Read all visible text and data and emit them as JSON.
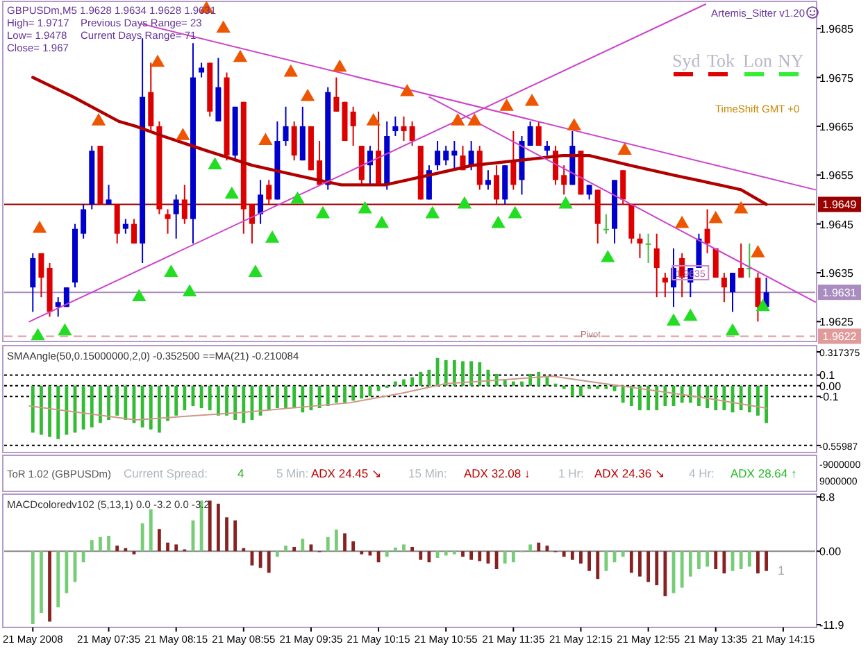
{
  "chart_data": [
    {
      "type": "candlestick",
      "title": "GBPUSDm,M5  1.9628 1.9634 1.9628 1.9631",
      "tick_labels": "y",
      "xlim": [
        "2008-05-21T06:33",
        "2008-05-21T14:34"
      ],
      "ylim": [
        1.96215,
        1.969
      ],
      "yticks": [
        1.9625,
        1.9635,
        1.9645,
        1.9655,
        1.9665,
        1.9675,
        1.9685
      ],
      "annotations": [
        "High= 1.9717",
        "Low= 1.9478",
        "Close= 1.967",
        "Previous Days Range= 23",
        "Current Days Range= 71",
        "Artemis_Sitter v1.20",
        "Syd",
        "Tok",
        "Lon",
        "NY",
        "TimeShift GMT +0",
        "Pivot",
        {
          "text": "1.9635",
          "x": "2008-05-21T13:20",
          "y": 1.9635
        }
      ],
      "ref_lines": [
        {
          "axis": "y",
          "value": 1.9649,
          "label": "1.9649",
          "color": "#990000"
        },
        {
          "axis": "y",
          "value": 1.9631,
          "label": "1.9631",
          "color": "#a98cc0"
        },
        {
          "axis": "y",
          "value": 1.9622,
          "label": "1.9622",
          "color": "#e09a9a",
          "line_style": "dashed"
        }
      ],
      "x": [
        "2008-05-21T06:50",
        "2008-05-21T06:55",
        "2008-05-21T07:00",
        "2008-05-21T07:05",
        "2008-05-21T07:10",
        "2008-05-21T07:15",
        "2008-05-21T07:20",
        "2008-05-21T07:25",
        "2008-05-21T07:30",
        "2008-05-21T07:35",
        "2008-05-21T07:40",
        "2008-05-21T07:45",
        "2008-05-21T07:50",
        "2008-05-21T07:55",
        "2008-05-21T08:00",
        "2008-05-21T08:05",
        "2008-05-21T08:10",
        "2008-05-21T08:15",
        "2008-05-21T08:20",
        "2008-05-21T08:25",
        "2008-05-21T08:30",
        "2008-05-21T08:35",
        "2008-05-21T08:40",
        "2008-05-21T08:45",
        "2008-05-21T08:50",
        "2008-05-21T08:55",
        "2008-05-21T09:00",
        "2008-05-21T09:05",
        "2008-05-21T09:10",
        "2008-05-21T09:15",
        "2008-05-21T09:20",
        "2008-05-21T09:25",
        "2008-05-21T09:30",
        "2008-05-21T09:35",
        "2008-05-21T09:40",
        "2008-05-21T09:45",
        "2008-05-21T09:50",
        "2008-05-21T09:55",
        "2008-05-21T10:00",
        "2008-05-21T10:05",
        "2008-05-21T10:10",
        "2008-05-21T10:15",
        "2008-05-21T10:20",
        "2008-05-21T10:25",
        "2008-05-21T10:30",
        "2008-05-21T10:35",
        "2008-05-21T10:40",
        "2008-05-21T10:45",
        "2008-05-21T10:50",
        "2008-05-21T10:55",
        "2008-05-21T11:00",
        "2008-05-21T11:05",
        "2008-05-21T11:10",
        "2008-05-21T11:15",
        "2008-05-21T11:20",
        "2008-05-21T11:25",
        "2008-05-21T11:30",
        "2008-05-21T11:35",
        "2008-05-21T11:40",
        "2008-05-21T11:45",
        "2008-05-21T11:50",
        "2008-05-21T11:55",
        "2008-05-21T12:00",
        "2008-05-21T12:05",
        "2008-05-21T12:10",
        "2008-05-21T12:15",
        "2008-05-21T12:20",
        "2008-05-21T12:25",
        "2008-05-21T12:30",
        "2008-05-21T12:35",
        "2008-05-21T12:40",
        "2008-05-21T12:45",
        "2008-05-21T12:50",
        "2008-05-21T12:55",
        "2008-05-21T13:00",
        "2008-05-21T13:05",
        "2008-05-21T13:10",
        "2008-05-21T13:15",
        "2008-05-21T13:20",
        "2008-05-21T13:25",
        "2008-05-21T13:30",
        "2008-05-21T13:35",
        "2008-05-21T13:40",
        "2008-05-21T13:45",
        "2008-05-21T13:50",
        "2008-05-21T13:55",
        "2008-05-21T14:00",
        "2008-05-21T14:05"
      ],
      "ohlc": [
        [
          1.9632,
          1.9639,
          1.9627,
          1.9638
        ],
        [
          1.9639,
          1.9639,
          1.963,
          1.9634
        ],
        [
          1.9636,
          1.9637,
          1.9626,
          1.9627
        ],
        [
          1.9628,
          1.963,
          1.9626,
          1.9629
        ],
        [
          1.9628,
          1.9632,
          1.9628,
          1.9632
        ],
        [
          1.9633,
          1.9645,
          1.9632,
          1.9644
        ],
        [
          1.9643,
          1.9649,
          1.9642,
          1.9648
        ],
        [
          1.9649,
          1.9661,
          1.9648,
          1.966
        ],
        [
          1.9661,
          1.9661,
          1.9649,
          1.9649
        ],
        [
          1.9649,
          1.9653,
          1.9649,
          1.965
        ],
        [
          1.9649,
          1.9649,
          1.9641,
          1.9643
        ],
        [
          1.9644,
          1.9646,
          1.9643,
          1.9645
        ],
        [
          1.9645,
          1.9646,
          1.9641,
          1.9641
        ],
        [
          1.9641,
          1.9683,
          1.9637,
          1.9671
        ],
        [
          1.9672,
          1.9678,
          1.9664,
          1.9665
        ],
        [
          1.9665,
          1.9666,
          1.9647,
          1.9648
        ],
        [
          1.9647,
          1.9648,
          1.9643,
          1.9646
        ],
        [
          1.9647,
          1.9651,
          1.9642,
          1.965
        ],
        [
          1.965,
          1.9653,
          1.9645,
          1.9646
        ],
        [
          1.9646,
          1.9682,
          1.9641,
          1.9675
        ],
        [
          1.9676,
          1.9678,
          1.9675,
          1.9677
        ],
        [
          1.9678,
          1.9678,
          1.9667,
          1.9668
        ],
        [
          1.9666,
          1.9679,
          1.9666,
          1.9673
        ],
        [
          1.9675,
          1.9676,
          1.9658,
          1.9659
        ],
        [
          1.9659,
          1.9669,
          1.9658,
          1.9669
        ],
        [
          1.967,
          1.967,
          1.9643,
          1.9648
        ],
        [
          1.9649,
          1.9649,
          1.9641,
          1.9645
        ],
        [
          1.9647,
          1.9654,
          1.9645,
          1.9651
        ],
        [
          1.9653,
          1.9654,
          1.9649,
          1.965
        ],
        [
          1.965,
          1.9666,
          1.965,
          1.9662
        ],
        [
          1.9662,
          1.9669,
          1.9661,
          1.9665
        ],
        [
          1.9665,
          1.9666,
          1.9658,
          1.9659
        ],
        [
          1.9658,
          1.9669,
          1.9658,
          1.9665
        ],
        [
          1.9665,
          1.9665,
          1.9656,
          1.9656
        ],
        [
          1.9658,
          1.9662,
          1.9653,
          1.9653
        ],
        [
          1.9653,
          1.9673,
          1.9652,
          1.9672
        ],
        [
          1.9671,
          1.9675,
          1.9668,
          1.9668
        ],
        [
          1.967,
          1.967,
          1.9662,
          1.9662
        ],
        [
          1.9668,
          1.9669,
          1.9661,
          1.9665
        ],
        [
          1.9661,
          1.9661,
          1.9653,
          1.9654
        ],
        [
          1.9657,
          1.9661,
          1.9653,
          1.966
        ],
        [
          1.966,
          1.9668,
          1.9653,
          1.9653
        ],
        [
          1.9653,
          1.9666,
          1.9652,
          1.9663
        ],
        [
          1.9664,
          1.9667,
          1.9663,
          1.9665
        ],
        [
          1.9665,
          1.9667,
          1.9662,
          1.9664
        ],
        [
          1.9665,
          1.9666,
          1.9661,
          1.9662
        ],
        [
          1.9661,
          1.9661,
          1.965,
          1.965
        ],
        [
          1.965,
          1.9657,
          1.965,
          1.9656
        ],
        [
          1.9657,
          1.9662,
          1.9656,
          1.966
        ],
        [
          1.9658,
          1.9661,
          1.9657,
          1.966
        ],
        [
          1.9659,
          1.9662,
          1.9656,
          1.966
        ],
        [
          1.9659,
          1.9661,
          1.9656,
          1.9656
        ],
        [
          1.9657,
          1.9662,
          1.9656,
          1.966
        ],
        [
          1.966,
          1.9661,
          1.9652,
          1.9653
        ],
        [
          1.9653,
          1.9656,
          1.9652,
          1.9654
        ],
        [
          1.9655,
          1.9657,
          1.9649,
          1.965
        ],
        [
          1.965,
          1.9657,
          1.9649,
          1.9657
        ],
        [
          1.9658,
          1.9664,
          1.9652,
          1.9653
        ],
        [
          1.9654,
          1.9663,
          1.9651,
          1.9662
        ],
        [
          1.9661,
          1.9666,
          1.9661,
          1.9665
        ],
        [
          1.9665,
          1.9666,
          1.9661,
          1.9661
        ],
        [
          1.966,
          1.9662,
          1.9659,
          1.9661
        ],
        [
          1.966,
          1.9661,
          1.9653,
          1.9654
        ],
        [
          1.9655,
          1.9657,
          1.9651,
          1.9653
        ],
        [
          1.9653,
          1.9664,
          1.9653,
          1.9661
        ],
        [
          1.966,
          1.966,
          1.9651,
          1.9651
        ],
        [
          1.9651,
          1.9653,
          1.965,
          1.9653
        ],
        [
          1.9652,
          1.9652,
          1.9641,
          1.9645
        ],
        [
          1.9644,
          1.9647,
          1.9643,
          1.9644
        ],
        [
          1.9644,
          1.9654,
          1.9641,
          1.9654
        ],
        [
          1.9656,
          1.9656,
          1.9649,
          1.965
        ],
        [
          1.9649,
          1.9649,
          1.9641,
          1.9642
        ],
        [
          1.9642,
          1.9643,
          1.9638,
          1.9641
        ],
        [
          1.9641,
          1.9643,
          1.9637,
          1.9641
        ],
        [
          1.964,
          1.9643,
          1.963,
          1.9636
        ],
        [
          1.9634,
          1.9635,
          1.963,
          1.9633
        ],
        [
          1.9632,
          1.964,
          1.9628,
          1.9636
        ],
        [
          1.9638,
          1.9639,
          1.963,
          1.9634
        ],
        [
          1.9633,
          1.9636,
          1.963,
          1.9636
        ],
        [
          1.9636,
          1.9643,
          1.9636,
          1.9642
        ],
        [
          1.9644,
          1.9648,
          1.9639,
          1.9641
        ],
        [
          1.964,
          1.964,
          1.9634,
          1.9634
        ],
        [
          1.9634,
          1.9635,
          1.9629,
          1.9632
        ],
        [
          1.9631,
          1.9635,
          1.9627,
          1.9635
        ],
        [
          1.9636,
          1.9641,
          1.9634,
          1.9634
        ],
        [
          1.9636,
          1.9641,
          1.9634,
          1.9636
        ],
        [
          1.9634,
          1.9635,
          1.9625,
          1.9628
        ],
        [
          1.9628,
          1.9634,
          1.9628,
          1.9631
        ]
      ],
      "colors": [
        "#0000cc",
        "#dd0000",
        "#dd0000",
        "#0000cc",
        "#0000cc",
        "#0000cc",
        "#0000cc",
        "#0000cc",
        "#dd0000",
        "#0000cc",
        "#dd0000",
        "#0000cc",
        "#dd0000",
        "#0000cc",
        "#dd0000",
        "#dd0000",
        "#dd0000",
        "#0000cc",
        "#dd0000",
        "#0000cc",
        "#0000cc",
        "#dd0000",
        "#0000cc",
        "#dd0000",
        "#0000cc",
        "#dd0000",
        "#dd0000",
        "#0000cc",
        "#dd0000",
        "#0000cc",
        "#0000cc",
        "#dd0000",
        "#0000cc",
        "#dd0000",
        "#dd0000",
        "#0000cc",
        "#dd0000",
        "#dd0000",
        "#dd0000",
        "#dd0000",
        "#0000cc",
        "#dd0000",
        "#0000cc",
        "#0000cc",
        "#dd0000",
        "#dd0000",
        "#dd0000",
        "#0000cc",
        "#0000cc",
        "#0000cc",
        "#0000cc",
        "#dd0000",
        "#0000cc",
        "#dd0000",
        "#0000cc",
        "#dd0000",
        "#0000cc",
        "#dd0000",
        "#0000cc",
        "#0000cc",
        "#dd0000",
        "#0000cc",
        "#dd0000",
        "#dd0000",
        "#0000cc",
        "#dd0000",
        "#0000cc",
        "#dd0000",
        "#44bb44",
        "#0000cc",
        "#dd0000",
        "#dd0000",
        "#dd0000",
        "#44bb44",
        "#dd0000",
        "#dd0000",
        "#0000cc",
        "#dd0000",
        "#0000cc",
        "#0000cc",
        "#dd0000",
        "#dd0000",
        "#dd0000",
        "#0000cc",
        "#dd0000",
        "#44bb44",
        "#dd0000",
        "#0000cc"
      ],
      "series": [
        {
          "type": "line",
          "color": "#b00000",
          "x": [
            "2008-05-21T06:50",
            "2008-05-21T07:14",
            "2008-05-21T07:41",
            "2008-05-21T07:51",
            "2008-05-21T08:07",
            "2008-05-21T08:33",
            "2008-05-21T09:00",
            "2008-05-21T09:26",
            "2008-05-21T09:39",
            "2008-05-21T09:53",
            "2008-05-21T10:19",
            "2008-05-21T10:32",
            "2008-05-21T10:45",
            "2008-05-21T10:58",
            "2008-05-21T11:11",
            "2008-05-21T11:38",
            "2008-05-21T12:04",
            "2008-05-21T12:20",
            "2008-05-21T12:44",
            "2008-05-21T13:10",
            "2008-05-21T13:37",
            "2008-05-21T13:50",
            "2008-05-21T14:05"
          ],
          "values": [
            1.9675,
            1.9671,
            1.9666,
            1.9665,
            1.9663,
            1.966,
            1.9657,
            1.9655,
            1.9654,
            1.9653,
            1.9653,
            1.9654,
            1.9655,
            1.9656,
            1.9657,
            1.9658,
            1.9659,
            1.9659,
            1.9657,
            1.9655,
            1.9653,
            1.9652,
            1.9649
          ]
        },
        {
          "type": "line",
          "color": "#cc44cc",
          "x": [
            "2008-05-21T07:54",
            "2008-05-21T14:34"
          ],
          "values": [
            1.9686,
            1.9652
          ]
        },
        {
          "type": "line",
          "color": "#cc44cc",
          "x": [
            "2008-05-21T10:45",
            "2008-05-21T14:34"
          ],
          "values": [
            1.9671,
            1.9629
          ]
        },
        {
          "type": "line",
          "color": "#cc44cc",
          "x": [
            "2008-05-21T06:48",
            "2008-05-21T13:29"
          ],
          "values": [
            1.9625,
            1.969
          ]
        },
        {
          "type": "scatter",
          "marker": "triangle",
          "color": "#ee5500",
          "x": [
            "2008-05-21T06:54",
            "2008-05-21T07:29",
            "2008-05-21T08:04",
            "2008-05-21T08:19",
            "2008-05-21T08:33",
            "2008-05-21T08:43",
            "2008-05-21T08:53",
            "2008-05-21T09:08",
            "2008-05-21T09:23",
            "2008-05-21T09:33",
            "2008-05-21T09:52",
            "2008-05-21T10:12",
            "2008-05-21T10:32",
            "2008-05-21T11:02",
            "2008-05-21T11:12",
            "2008-05-21T11:31",
            "2008-05-21T11:46",
            "2008-05-21T12:11",
            "2008-05-21T12:41",
            "2008-05-21T13:15",
            "2008-05-21T13:35",
            "2008-05-21T13:50",
            "2008-05-21T14:00"
          ],
          "values": [
            1.9644,
            1.9666,
            1.9678,
            1.9663,
            1.9689,
            1.9685,
            1.9679,
            1.9662,
            1.9676,
            1.9671,
            1.9677,
            1.9666,
            1.9672,
            1.9666,
            1.9666,
            1.9669,
            1.967,
            1.9665,
            1.966,
            1.9645,
            1.9646,
            1.9648,
            1.9639
          ]
        },
        {
          "type": "scatter",
          "marker": "triangle",
          "color": "#22dd22",
          "x": [
            "2008-05-21T06:53",
            "2008-05-21T07:09",
            "2008-05-21T07:53",
            "2008-05-21T08:12",
            "2008-05-21T08:23",
            "2008-05-21T08:38",
            "2008-05-21T08:48",
            "2008-05-21T09:02",
            "2008-05-21T09:12",
            "2008-05-21T09:27",
            "2008-05-21T09:42",
            "2008-05-21T10:07",
            "2008-05-21T10:17",
            "2008-05-21T10:47",
            "2008-05-21T11:06",
            "2008-05-21T11:26",
            "2008-05-21T11:36",
            "2008-05-21T12:06",
            "2008-05-21T12:31",
            "2008-05-21T13:10",
            "2008-05-21T13:20",
            "2008-05-21T13:45",
            "2008-05-21T14:03"
          ],
          "values": [
            1.9622,
            1.9623,
            1.963,
            1.9635,
            1.9631,
            1.9657,
            1.9651,
            1.9635,
            1.9642,
            1.965,
            1.9647,
            1.9648,
            1.9645,
            1.9647,
            1.9649,
            1.9645,
            1.9647,
            1.9649,
            1.9638,
            1.9625,
            1.9626,
            1.9623,
            1.9628
          ]
        }
      ]
    },
    {
      "type": "bar",
      "title": "SMAAngle(50,0.15000000,2,0) -0.352500  ==MA(21) -0.210084",
      "tick_labels": "y",
      "xlim": [
        "2008-05-21T06:33",
        "2008-05-21T14:34"
      ],
      "ylim": [
        -0.6,
        0.35
      ],
      "yticks": [
        0.317375,
        0.1,
        {
          "value": 0,
          "label": "0.00"
        },
        -0.1,
        -0.55987
      ],
      "color": "#33bb33",
      "ref_lines": [
        {
          "axis": "y",
          "value": 0.1,
          "color": "#000000",
          "line_style": "dotted"
        },
        {
          "axis": "y",
          "value": 0,
          "color": "#000000",
          "line_style": "dotted"
        },
        {
          "axis": "y",
          "value": -0.1,
          "color": "#000000",
          "line_style": "dotted"
        },
        {
          "axis": "y",
          "value": -0.55987,
          "color": "#000000",
          "line_style": "dotted"
        }
      ],
      "x": [
        "2008-05-21T06:50",
        "2008-05-21T06:55",
        "2008-05-21T07:00",
        "2008-05-21T07:05",
        "2008-05-21T07:10",
        "2008-05-21T07:15",
        "2008-05-21T07:20",
        "2008-05-21T07:25",
        "2008-05-21T07:30",
        "2008-05-21T07:35",
        "2008-05-21T07:40",
        "2008-05-21T07:45",
        "2008-05-21T07:50",
        "2008-05-21T07:55",
        "2008-05-21T08:00",
        "2008-05-21T08:05",
        "2008-05-21T08:10",
        "2008-05-21T08:15",
        "2008-05-21T08:20",
        "2008-05-21T08:25",
        "2008-05-21T08:30",
        "2008-05-21T08:35",
        "2008-05-21T08:40",
        "2008-05-21T08:45",
        "2008-05-21T08:50",
        "2008-05-21T08:55",
        "2008-05-21T09:00",
        "2008-05-21T09:05",
        "2008-05-21T09:10",
        "2008-05-21T09:15",
        "2008-05-21T09:20",
        "2008-05-21T09:25",
        "2008-05-21T09:30",
        "2008-05-21T09:35",
        "2008-05-21T09:40",
        "2008-05-21T09:45",
        "2008-05-21T09:50",
        "2008-05-21T09:55",
        "2008-05-21T10:00",
        "2008-05-21T10:05",
        "2008-05-21T10:10",
        "2008-05-21T10:15",
        "2008-05-21T10:20",
        "2008-05-21T10:25",
        "2008-05-21T10:30",
        "2008-05-21T10:35",
        "2008-05-21T10:40",
        "2008-05-21T10:45",
        "2008-05-21T10:50",
        "2008-05-21T10:55",
        "2008-05-21T11:00",
        "2008-05-21T11:05",
        "2008-05-21T11:10",
        "2008-05-21T11:15",
        "2008-05-21T11:20",
        "2008-05-21T11:25",
        "2008-05-21T11:30",
        "2008-05-21T11:35",
        "2008-05-21T11:40",
        "2008-05-21T11:45",
        "2008-05-21T11:50",
        "2008-05-21T11:55",
        "2008-05-21T12:00",
        "2008-05-21T12:05",
        "2008-05-21T12:10",
        "2008-05-21T12:15",
        "2008-05-21T12:20",
        "2008-05-21T12:25",
        "2008-05-21T12:30",
        "2008-05-21T12:35",
        "2008-05-21T12:40",
        "2008-05-21T12:45",
        "2008-05-21T12:50",
        "2008-05-21T12:55",
        "2008-05-21T13:00",
        "2008-05-21T13:05",
        "2008-05-21T13:10",
        "2008-05-21T13:15",
        "2008-05-21T13:20",
        "2008-05-21T13:25",
        "2008-05-21T13:30",
        "2008-05-21T13:35",
        "2008-05-21T13:40",
        "2008-05-21T13:45",
        "2008-05-21T13:50",
        "2008-05-21T13:55",
        "2008-05-21T14:00",
        "2008-05-21T14:05"
      ],
      "values": [
        -0.44,
        -0.46,
        -0.48,
        -0.5,
        -0.46,
        -0.44,
        -0.41,
        -0.39,
        -0.35,
        -0.32,
        -0.28,
        -0.32,
        -0.35,
        -0.39,
        -0.41,
        -0.44,
        -0.33,
        -0.28,
        -0.23,
        -0.19,
        -0.21,
        -0.23,
        -0.28,
        -0.28,
        -0.32,
        -0.35,
        -0.32,
        -0.28,
        -0.23,
        -0.21,
        -0.21,
        -0.21,
        -0.25,
        -0.23,
        -0.21,
        -0.19,
        -0.16,
        -0.16,
        -0.14,
        -0.12,
        -0.1,
        -0.05,
        -0.02,
        0.04,
        0.06,
        0.08,
        0.13,
        0.15,
        0.26,
        0.24,
        0.24,
        0.23,
        0.23,
        0.22,
        0.15,
        0.11,
        0.06,
        0.04,
        0.04,
        0.11,
        0.13,
        0.08,
        0.02,
        -0.03,
        -0.1,
        -0.1,
        -0.03,
        -0.03,
        -0.03,
        -0.05,
        -0.16,
        -0.19,
        -0.23,
        -0.23,
        -0.23,
        -0.19,
        -0.19,
        -0.16,
        -0.16,
        -0.19,
        -0.21,
        -0.23,
        -0.23,
        -0.25,
        -0.23,
        -0.25,
        -0.28,
        -0.35
      ],
      "series": [
        {
          "type": "line",
          "color": "#cc9988",
          "x": [
            "2008-05-21T06:48",
            "2008-05-21T07:51",
            "2008-05-21T08:54",
            "2008-05-21T09:58",
            "2008-05-21T10:29",
            "2008-05-21T10:55",
            "2008-05-21T11:33",
            "2008-05-21T11:58",
            "2008-05-21T12:20",
            "2008-05-21T12:52",
            "2008-05-21T13:23",
            "2008-05-21T14:05"
          ],
          "values": [
            -0.19,
            -0.32,
            -0.25,
            -0.16,
            -0.07,
            0.02,
            0.06,
            0.09,
            0.04,
            -0.03,
            -0.1,
            -0.21
          ]
        }
      ]
    },
    {
      "type": "other",
      "title": "ToR 1.02 (GBPUSDm)",
      "annotations": [
        "Current Spread:",
        "4",
        "5 Min:",
        "ADX 24.45 ↘",
        "15 Min:",
        "ADX 32.08 ↓",
        "1 Hr:",
        "ADX 24.36 ↘",
        "4 Hr:",
        "ADX 28.64 ↑",
        "-9000000",
        "9000000"
      ]
    },
    {
      "type": "bar",
      "title": "MACDcoloredv102 (5,13,1) 0.0 -3.2 0.0 -3.2",
      "annotations": [
        "1"
      ],
      "xlim": [
        "2008-05-21T06:33",
        "2008-05-21T14:34"
      ],
      "ylim": [
        -11.9,
        8.8
      ],
      "yticks": [
        8.8,
        {
          "value": 0,
          "label": "0.00"
        },
        -11.9
      ],
      "xticks": [
        {
          "value": "2008-05-21T06:50",
          "label": "21 May 2008"
        },
        {
          "value": "2008-05-21T07:35",
          "label": "21 May 07:35"
        },
        {
          "value": "2008-05-21T08:15",
          "label": "21 May 08:15"
        },
        {
          "value": "2008-05-21T08:55",
          "label": "21 May 08:55"
        },
        {
          "value": "2008-05-21T09:35",
          "label": "21 May 09:35"
        },
        {
          "value": "2008-05-21T10:15",
          "label": "21 May 10:15"
        },
        {
          "value": "2008-05-21T10:55",
          "label": "21 May 10:55"
        },
        {
          "value": "2008-05-21T11:35",
          "label": "21 May 11:35"
        },
        {
          "value": "2008-05-21T12:15",
          "label": "21 May 12:15"
        },
        {
          "value": "2008-05-21T12:55",
          "label": "21 May 12:55"
        },
        {
          "value": "2008-05-21T13:35",
          "label": "21 May 13:35"
        },
        {
          "value": "2008-05-21T14:15",
          "label": "21 May 14:15"
        }
      ],
      "ref_lines": [
        {
          "axis": "y",
          "value": 0,
          "color": "#888888"
        }
      ],
      "x": [
        "2008-05-21T06:50",
        "2008-05-21T06:55",
        "2008-05-21T07:00",
        "2008-05-21T07:05",
        "2008-05-21T07:10",
        "2008-05-21T07:15",
        "2008-05-21T07:20",
        "2008-05-21T07:25",
        "2008-05-21T07:30",
        "2008-05-21T07:35",
        "2008-05-21T07:40",
        "2008-05-21T07:45",
        "2008-05-21T07:50",
        "2008-05-21T07:55",
        "2008-05-21T08:00",
        "2008-05-21T08:05",
        "2008-05-21T08:10",
        "2008-05-21T08:15",
        "2008-05-21T08:20",
        "2008-05-21T08:25",
        "2008-05-21T08:30",
        "2008-05-21T08:35",
        "2008-05-21T08:40",
        "2008-05-21T08:45",
        "2008-05-21T08:50",
        "2008-05-21T08:55",
        "2008-05-21T09:00",
        "2008-05-21T09:05",
        "2008-05-21T09:10",
        "2008-05-21T09:15",
        "2008-05-21T09:20",
        "2008-05-21T09:25",
        "2008-05-21T09:30",
        "2008-05-21T09:35",
        "2008-05-21T09:40",
        "2008-05-21T09:45",
        "2008-05-21T09:50",
        "2008-05-21T09:55",
        "2008-05-21T10:00",
        "2008-05-21T10:05",
        "2008-05-21T10:10",
        "2008-05-21T10:15",
        "2008-05-21T10:20",
        "2008-05-21T10:25",
        "2008-05-21T10:30",
        "2008-05-21T10:35",
        "2008-05-21T10:40",
        "2008-05-21T10:45",
        "2008-05-21T10:50",
        "2008-05-21T10:55",
        "2008-05-21T11:00",
        "2008-05-21T11:05",
        "2008-05-21T11:10",
        "2008-05-21T11:15",
        "2008-05-21T11:20",
        "2008-05-21T11:25",
        "2008-05-21T11:30",
        "2008-05-21T11:35",
        "2008-05-21T11:40",
        "2008-05-21T11:45",
        "2008-05-21T11:50",
        "2008-05-21T11:55",
        "2008-05-21T12:00",
        "2008-05-21T12:05",
        "2008-05-21T12:10",
        "2008-05-21T12:15",
        "2008-05-21T12:20",
        "2008-05-21T12:25",
        "2008-05-21T12:30",
        "2008-05-21T12:35",
        "2008-05-21T12:40",
        "2008-05-21T12:45",
        "2008-05-21T12:50",
        "2008-05-21T12:55",
        "2008-05-21T13:00",
        "2008-05-21T13:05",
        "2008-05-21T13:10",
        "2008-05-21T13:15",
        "2008-05-21T13:20",
        "2008-05-21T13:25",
        "2008-05-21T13:30",
        "2008-05-21T13:35",
        "2008-05-21T13:40",
        "2008-05-21T13:45",
        "2008-05-21T13:50",
        "2008-05-21T13:55",
        "2008-05-21T14:00",
        "2008-05-21T14:05"
      ],
      "values": [
        -11.8,
        -10,
        -11.4,
        -9.1,
        -6.8,
        -5,
        -1.8,
        1.8,
        2.3,
        2.5,
        0.9,
        0.5,
        -0.5,
        4.5,
        6.8,
        3.6,
        1.4,
        1.1,
        0.3,
        5,
        8.2,
        8.2,
        7.7,
        5.5,
        5,
        0.5,
        -2.3,
        -2.7,
        -3.5,
        -0.9,
        0.9,
        0.7,
        2,
        1.1,
        0,
        2.3,
        3.5,
        2.9,
        1.6,
        -0.5,
        -0.7,
        -1.8,
        -0.9,
        0.6,
        1.1,
        0.7,
        -1.4,
        -1.8,
        -1.1,
        -0.7,
        -0.5,
        -0.9,
        -1.4,
        -1.6,
        -2,
        -2.9,
        -2,
        -1.8,
        0,
        1.1,
        1.4,
        0.9,
        0,
        -0.9,
        -1.4,
        -2,
        -3.2,
        -4.5,
        -3.2,
        -1.8,
        -0.9,
        -3.5,
        -4.1,
        -5,
        -5.5,
        -7.3,
        -6.8,
        -5.9,
        -4.1,
        -2.9,
        -2.5,
        -2.9,
        -3.6,
        -3.2,
        -2.9,
        -2.5,
        -3.6,
        -3.2
      ],
      "colors": [
        "#77cc77",
        "#77cc77",
        "#882222",
        "#77cc77",
        "#77cc77",
        "#77cc77",
        "#77cc77",
        "#77cc77",
        "#77cc77",
        "#77cc77",
        "#882222",
        "#882222",
        "#882222",
        "#77cc77",
        "#77cc77",
        "#882222",
        "#882222",
        "#882222",
        "#882222",
        "#77cc77",
        "#77cc77",
        "#882222",
        "#882222",
        "#882222",
        "#882222",
        "#882222",
        "#882222",
        "#882222",
        "#882222",
        "#77cc77",
        "#77cc77",
        "#882222",
        "#77cc77",
        "#882222",
        "#882222",
        "#77cc77",
        "#77cc77",
        "#882222",
        "#882222",
        "#882222",
        "#882222",
        "#882222",
        "#77cc77",
        "#77cc77",
        "#77cc77",
        "#882222",
        "#882222",
        "#882222",
        "#77cc77",
        "#77cc77",
        "#77cc77",
        "#882222",
        "#882222",
        "#882222",
        "#882222",
        "#882222",
        "#77cc77",
        "#77cc77",
        "#77cc77",
        "#77cc77",
        "#882222",
        "#882222",
        "#882222",
        "#882222",
        "#882222",
        "#882222",
        "#882222",
        "#882222",
        "#77cc77",
        "#77cc77",
        "#77cc77",
        "#882222",
        "#882222",
        "#882222",
        "#882222",
        "#882222",
        "#77cc77",
        "#77cc77",
        "#77cc77",
        "#77cc77",
        "#77cc77",
        "#882222",
        "#882222",
        "#77cc77",
        "#77cc77",
        "#77cc77",
        "#882222",
        "#882222"
      ]
    }
  ]
}
